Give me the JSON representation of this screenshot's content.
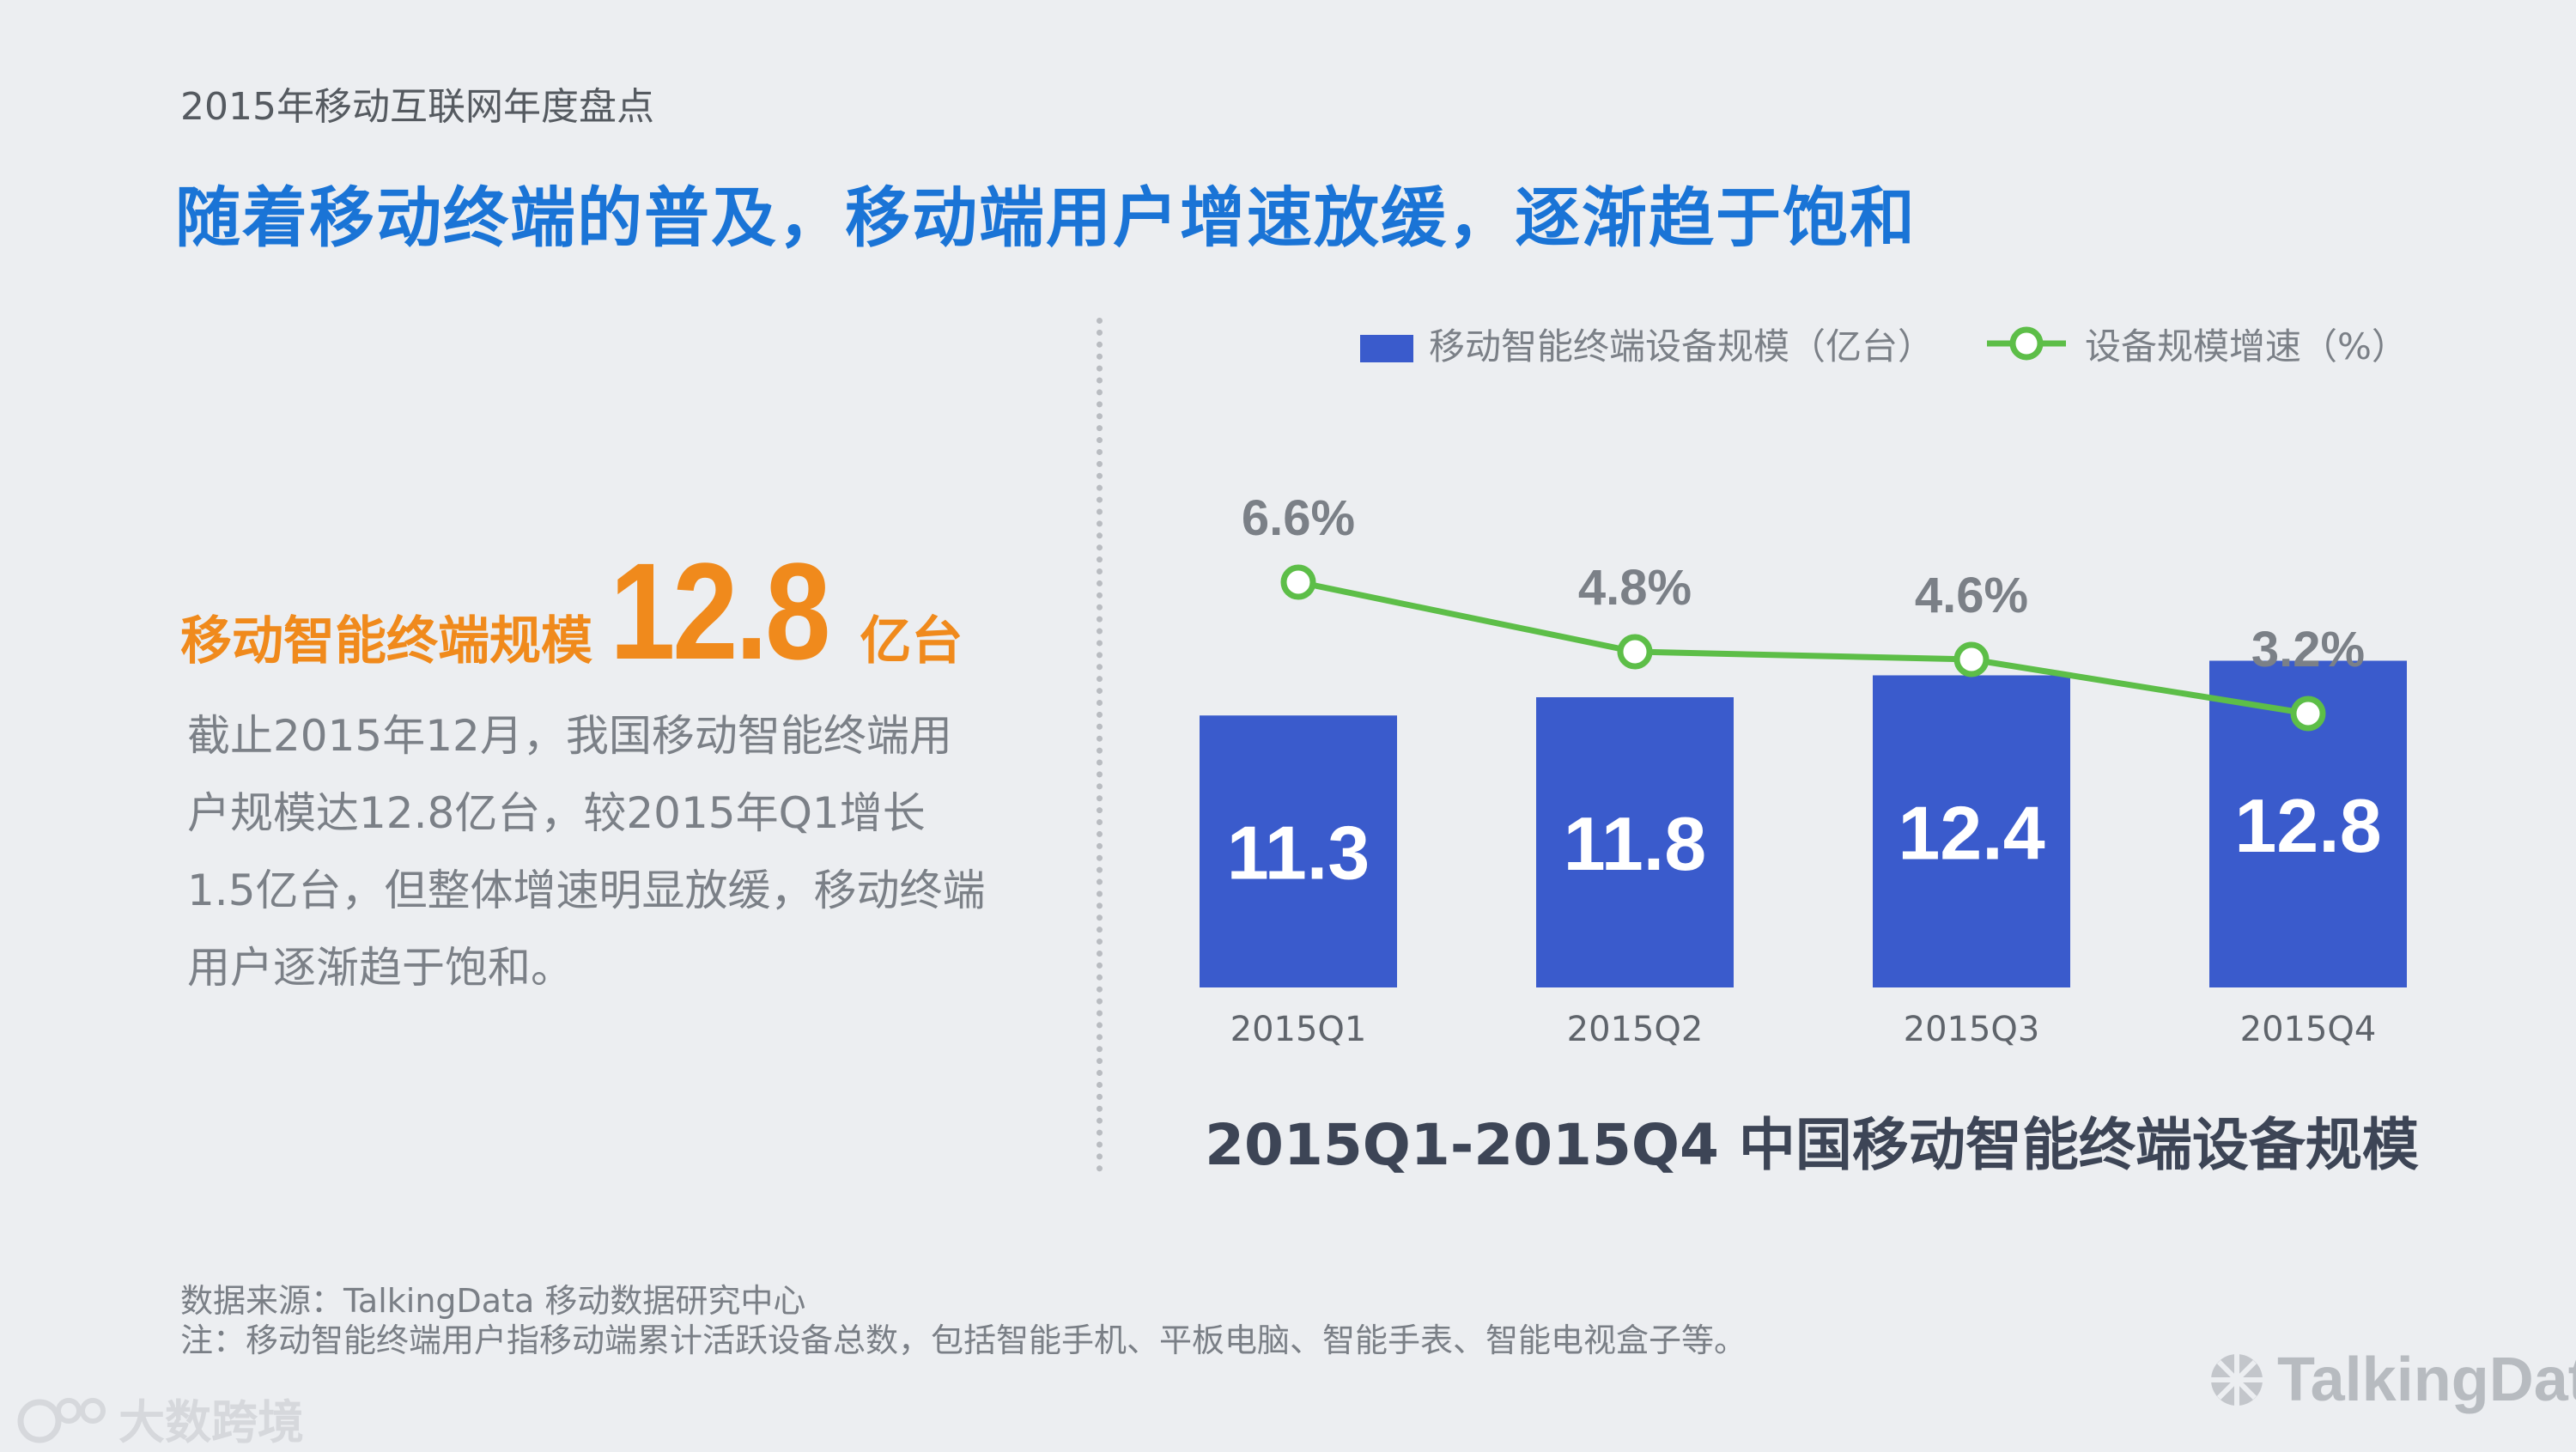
{
  "header": {
    "report_label": "2015年移动互联网年度盘点",
    "headline": "随着移动终端的普及，移动端用户增速放缓，逐渐趋于饱和"
  },
  "metric": {
    "label": "移动智能终端规模",
    "value": "12.8",
    "unit": "亿台",
    "color": "#f08a1c"
  },
  "description": "截止2015年12月，我国移动智能终端用户规模达12.8亿台，较2015年Q1增长1.5亿台，但整体增速明显放缓，移动终端用户逐渐趋于饱和。",
  "chart_data": {
    "type": "bar+line",
    "title": "2015Q1-2015Q4 中国移动智能终端设备规模",
    "categories": [
      "2015Q1",
      "2015Q2",
      "2015Q3",
      "2015Q4"
    ],
    "series": [
      {
        "name": "移动智能终端设备规模（亿台）",
        "type": "bar",
        "values": [
          11.3,
          11.8,
          12.4,
          12.8
        ],
        "labels": [
          "11.3",
          "11.8",
          "12.4",
          "12.8"
        ],
        "color": "#3a5bcc"
      },
      {
        "name": "设备规模增速（%）",
        "type": "line",
        "values": [
          6.6,
          4.8,
          4.6,
          3.2
        ],
        "labels": [
          "6.6%",
          "4.8%",
          "4.6%",
          "3.2%"
        ],
        "color": "#5dbe48"
      }
    ],
    "bar_ylim": [
      0,
      14
    ],
    "legend_position": "top-right"
  },
  "footer": {
    "source": "数据来源：TalkingData 移动数据研究中心",
    "note": "注：移动智能终端用户指移动端累计活跃设备总数，包括智能手机、平板电脑、智能手表、智能电视盒子等。"
  },
  "watermarks": {
    "left_text": "大数跨境",
    "right_text": "TalkingData"
  }
}
